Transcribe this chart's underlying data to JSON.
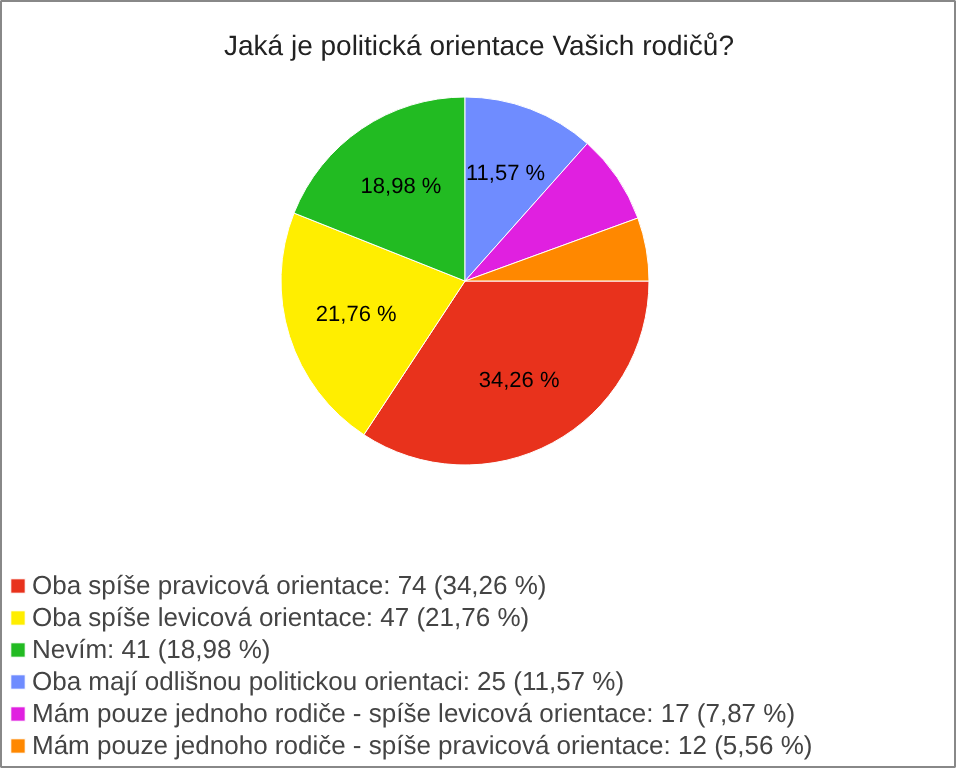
{
  "chart_data": {
    "type": "pie",
    "title": "Jaká je politická orientace Vašich rodičů?",
    "categories": [
      "Oba spíše pravicová orientace: 74 (34,26 %)",
      "Oba spíše levicová orientace: 47 (21,76 %)",
      "Nevím: 41 (18,98 %)",
      "Oba mají odlišnou politickou orientaci: 25 (11,57 %)",
      "Mám pouze jednoho rodiče - spíše levicová orientace: 17 (7,87 %)",
      "Mám pouze jednoho rodiče - spíše pravicová orientace: 12 (5,56 %)"
    ],
    "values": [
      34.26,
      21.76,
      18.98,
      11.57,
      7.87,
      5.56
    ],
    "colors": [
      "#e8321c",
      "#ffee00",
      "#22bb22",
      "#6f8cff",
      "#e020e0",
      "#ff8800"
    ],
    "value_labels": [
      "34,26 %",
      "21,76 %",
      "18,98 %",
      "11,57 %",
      null,
      null
    ],
    "legend": "bottom left"
  }
}
